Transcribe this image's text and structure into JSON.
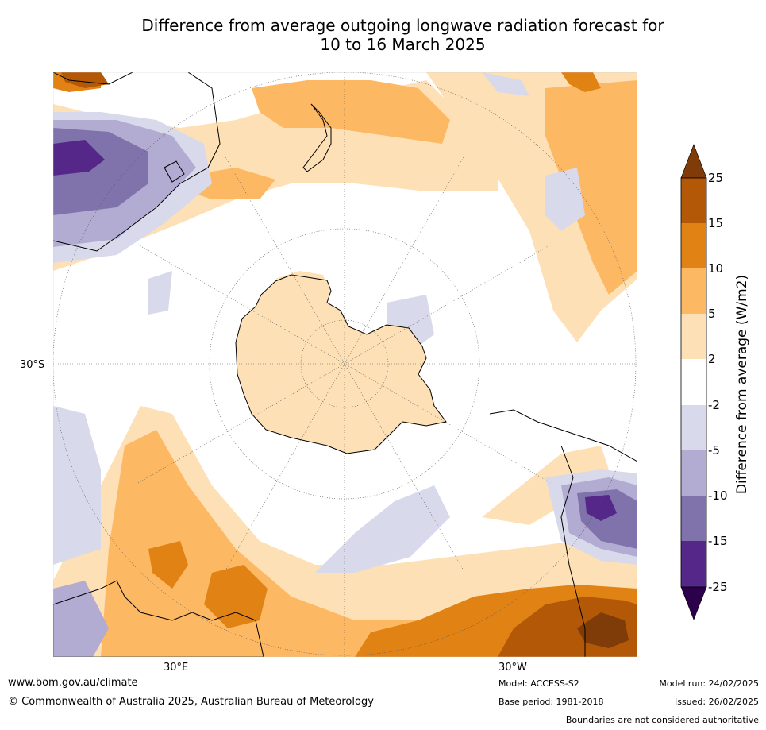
{
  "title": {
    "line1": "Difference from average outgoing longwave radiation forecast for",
    "line2": "10 to 16 March 2025"
  },
  "map": {
    "projection": "south-polar-stereographic",
    "lat_label": "30°S",
    "lon_labels": [
      "30°E",
      "30°W"
    ]
  },
  "colorbar": {
    "label": "Difference from average (W/m2)",
    "ticks": [
      "25",
      "15",
      "10",
      "5",
      "2",
      "-2",
      "-5",
      "-10",
      "-15",
      "-25"
    ],
    "colors": {
      "over": "#7f3b08",
      "b15_25": "#b35806",
      "b10_15": "#e08214",
      "b5_10": "#fdb863",
      "b2_5": "#fee0b6",
      "neutral": "#ffffff",
      "bm5_m2": "#d8daeb",
      "bm10_m5": "#b2abd2",
      "bm15_m10": "#8073ac",
      "bm25_m15": "#542788",
      "under": "#2d004b"
    }
  },
  "footer": {
    "website": "www.bom.gov.au/climate",
    "copyright": "© Commonwealth of Australia 2025, Australian Bureau of Meteorology",
    "model": "Model: ACCESS-S2",
    "base_period": "Base period: 1981-2018",
    "model_run": "Model run: 24/02/2025",
    "issued": "Issued: 26/02/2025",
    "disclaimer": "Boundaries are not considered authoritative"
  }
}
